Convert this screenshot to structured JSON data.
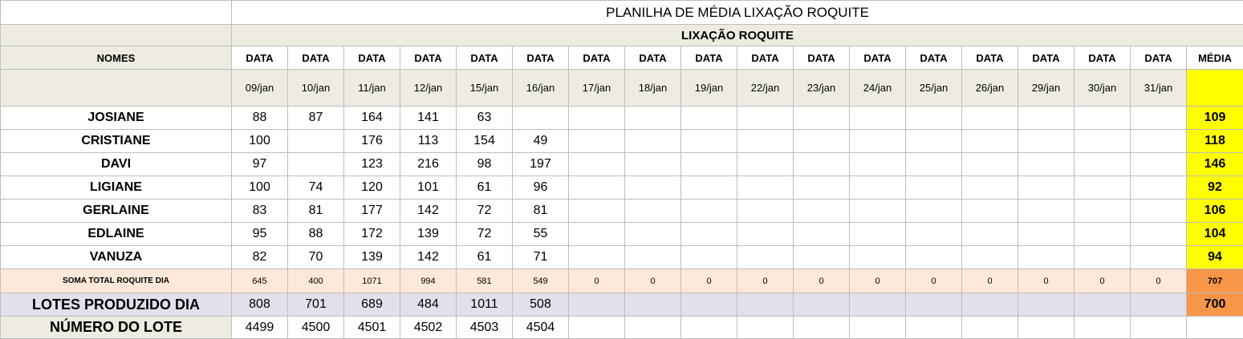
{
  "sheet": {
    "title": "PLANILHA DE MÉDIA LIXAÇÃO ROQUITE",
    "subtitle": "LIXAÇÃO ROQUITE",
    "names_header": "NOMES",
    "date_header": "DATA",
    "media_header": "MÉDIA",
    "dates": [
      "09/jan",
      "10/jan",
      "11/jan",
      "12/jan",
      "15/jan",
      "16/jan",
      "17/jan",
      "18/jan",
      "19/jan",
      "22/jan",
      "23/jan",
      "24/jan",
      "25/jan",
      "26/jan",
      "29/jan",
      "30/jan",
      "31/jan"
    ],
    "people": [
      {
        "name": "JOSIANE",
        "values": [
          "88",
          "87",
          "164",
          "141",
          "63",
          "",
          "",
          "",
          "",
          "",
          "",
          "",
          "",
          "",
          "",
          "",
          ""
        ],
        "media": "109"
      },
      {
        "name": "CRISTIANE",
        "values": [
          "100",
          "",
          "176",
          "113",
          "154",
          "49",
          "",
          "",
          "",
          "",
          "",
          "",
          "",
          "",
          "",
          "",
          ""
        ],
        "media": "118"
      },
      {
        "name": "DAVI",
        "values": [
          "97",
          "",
          "123",
          "216",
          "98",
          "197",
          "",
          "",
          "",
          "",
          "",
          "",
          "",
          "",
          "",
          "",
          ""
        ],
        "media": "146"
      },
      {
        "name": "LIGIANE",
        "values": [
          "100",
          "74",
          "120",
          "101",
          "61",
          "96",
          "",
          "",
          "",
          "",
          "",
          "",
          "",
          "",
          "",
          "",
          ""
        ],
        "media": "92"
      },
      {
        "name": "GERLAINE",
        "values": [
          "83",
          "81",
          "177",
          "142",
          "72",
          "81",
          "",
          "",
          "",
          "",
          "",
          "",
          "",
          "",
          "",
          "",
          ""
        ],
        "media": "106"
      },
      {
        "name": "EDLAINE",
        "values": [
          "95",
          "88",
          "172",
          "139",
          "72",
          "55",
          "",
          "",
          "",
          "",
          "",
          "",
          "",
          "",
          "",
          "",
          ""
        ],
        "media": "104"
      },
      {
        "name": "VANUZA",
        "values": [
          "82",
          "70",
          "139",
          "142",
          "61",
          "71",
          "",
          "",
          "",
          "",
          "",
          "",
          "",
          "",
          "",
          "",
          ""
        ],
        "media": "94"
      }
    ],
    "soma": {
      "label": "SOMA TOTAL  ROQUITE DIA",
      "values": [
        "645",
        "400",
        "1071",
        "994",
        "581",
        "549",
        "0",
        "0",
        "0",
        "0",
        "0",
        "0",
        "0",
        "0",
        "0",
        "0",
        "0"
      ],
      "total": "707"
    },
    "lotes": {
      "label": "LOTES PRODUZIDO DIA",
      "values": [
        "808",
        "701",
        "689",
        "484",
        "1011",
        "508",
        "",
        "",
        "",
        "",
        "",
        "",
        "",
        "",
        "",
        "",
        ""
      ],
      "total": "700"
    },
    "numero_lote": {
      "label": "NÚMERO DO LOTE",
      "values": [
        "4499",
        "4500",
        "4501",
        "4502",
        "4503",
        "4504",
        "",
        "",
        "",
        "",
        "",
        "",
        "",
        "",
        "",
        "",
        ""
      ],
      "total": ""
    },
    "colors": {
      "media_highlight": "#ffff00",
      "total_highlight": "#f79646",
      "header_beige": "#eeece1",
      "soma_row": "#fde9d9",
      "lotes_row": "#e4dfec"
    }
  }
}
